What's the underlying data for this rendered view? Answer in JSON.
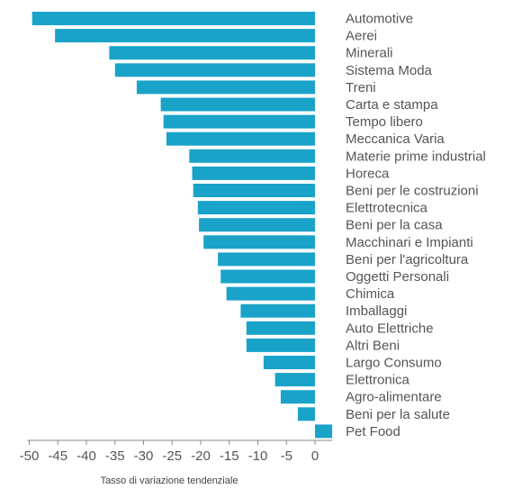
{
  "chart_data": {
    "type": "bar",
    "orientation": "horizontal",
    "xlabel": "Tasso di variazione tendenziale",
    "ylabel": "",
    "xlim": [
      -50,
      3
    ],
    "xticks": [
      -50,
      -45,
      -40,
      -35,
      -30,
      -25,
      -20,
      -15,
      -10,
      -5,
      0
    ],
    "tick_labels": [
      "-50",
      "-45",
      "-40",
      "-35",
      "-30",
      "-25",
      "-20",
      "-15",
      "-10",
      "-5",
      "0"
    ],
    "grid": false,
    "bar_color": "#1aa3c9",
    "categories": [
      "Automotive",
      "Aerei",
      "Minerali",
      "Sistema Moda",
      "Treni",
      "Carta e stampa",
      "Tempo libero",
      "Meccanica Varia",
      "Materie prime industrial",
      "Horeca",
      "Beni per le costruzioni",
      "Elettrotecnica",
      "Beni per la casa",
      "Macchinari e Impianti",
      "Beni per l'agricoltura",
      "Oggetti Personali",
      "Chimica",
      "Imballaggi",
      "Auto Elettriche",
      "Altri Beni",
      "Largo Consumo",
      "Elettronica",
      "Agro-alimentare",
      "Beni per la salute",
      "Pet Food"
    ],
    "values": [
      -49.5,
      -45.5,
      -36,
      -35,
      -31.2,
      -27,
      -26.5,
      -26,
      -22,
      -21.5,
      -21.3,
      -20.5,
      -20.3,
      -19.5,
      -17,
      -16.5,
      -15.5,
      -13,
      -12,
      -12,
      -9,
      -7,
      -6,
      -3,
      3
    ]
  }
}
